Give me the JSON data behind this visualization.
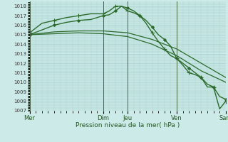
{
  "bg_color": "#cceae7",
  "grid_color": "#aad4d0",
  "line_color": "#2d6b2d",
  "marker_color": "#2d6b2d",
  "ylabel_min": 1007,
  "ylabel_max": 1018,
  "xlabel": "Pression niveau de la mer( hPa )",
  "xtick_labels": [
    "Mer",
    "Dim",
    "Jeu",
    "Ven",
    "Sam"
  ],
  "xtick_positions": [
    0,
    12,
    16,
    24,
    32
  ],
  "vlines": [
    0,
    12,
    16,
    24,
    32
  ],
  "series": [
    {
      "x": [
        0,
        2,
        4,
        6,
        8,
        10,
        12,
        13,
        14,
        15,
        16,
        17,
        18,
        19,
        20,
        21,
        22,
        23,
        24,
        25,
        26,
        27,
        28,
        29,
        30,
        31,
        32
      ],
      "y": [
        1015.0,
        1015.5,
        1016.0,
        1016.3,
        1016.5,
        1016.6,
        1017.0,
        1017.1,
        1017.5,
        1018.0,
        1017.8,
        1017.5,
        1017.0,
        1016.5,
        1015.8,
        1015.0,
        1014.5,
        1013.8,
        1012.5,
        1012.0,
        1011.5,
        1011.0,
        1010.5,
        1009.8,
        1009.5,
        1008.5,
        1008.2
      ],
      "marker": "D",
      "markersize": 2,
      "markevery": 2,
      "lw": 1.0
    },
    {
      "x": [
        0,
        2,
        4,
        6,
        8,
        10,
        12,
        13,
        14,
        15,
        16,
        17,
        18,
        19,
        20,
        21,
        22,
        23,
        24,
        25,
        26,
        27,
        28,
        29,
        30,
        31,
        32
      ],
      "y": [
        1015.2,
        1016.2,
        1016.5,
        1016.8,
        1017.0,
        1017.2,
        1017.2,
        1017.5,
        1018.0,
        1018.0,
        1017.5,
        1017.3,
        1017.0,
        1016.2,
        1015.2,
        1014.3,
        1013.5,
        1012.8,
        1012.5,
        1011.8,
        1011.0,
        1010.8,
        1010.5,
        1009.5,
        1009.5,
        1007.2,
        1008.0
      ],
      "marker": "+",
      "markersize": 4,
      "markevery": 2,
      "lw": 1.0
    },
    {
      "x": [
        0,
        4,
        8,
        12,
        16,
        20,
        24,
        28,
        32
      ],
      "y": [
        1015.0,
        1015.3,
        1015.4,
        1015.4,
        1015.2,
        1014.5,
        1013.5,
        1012.0,
        1010.5
      ],
      "marker": null,
      "markersize": 0,
      "markevery": 1,
      "lw": 0.9
    },
    {
      "x": [
        0,
        4,
        8,
        12,
        16,
        20,
        24,
        28,
        32
      ],
      "y": [
        1015.0,
        1015.1,
        1015.2,
        1015.1,
        1014.8,
        1014.0,
        1012.8,
        1011.2,
        1010.0
      ],
      "marker": null,
      "markersize": 0,
      "markevery": 1,
      "lw": 0.9
    }
  ]
}
